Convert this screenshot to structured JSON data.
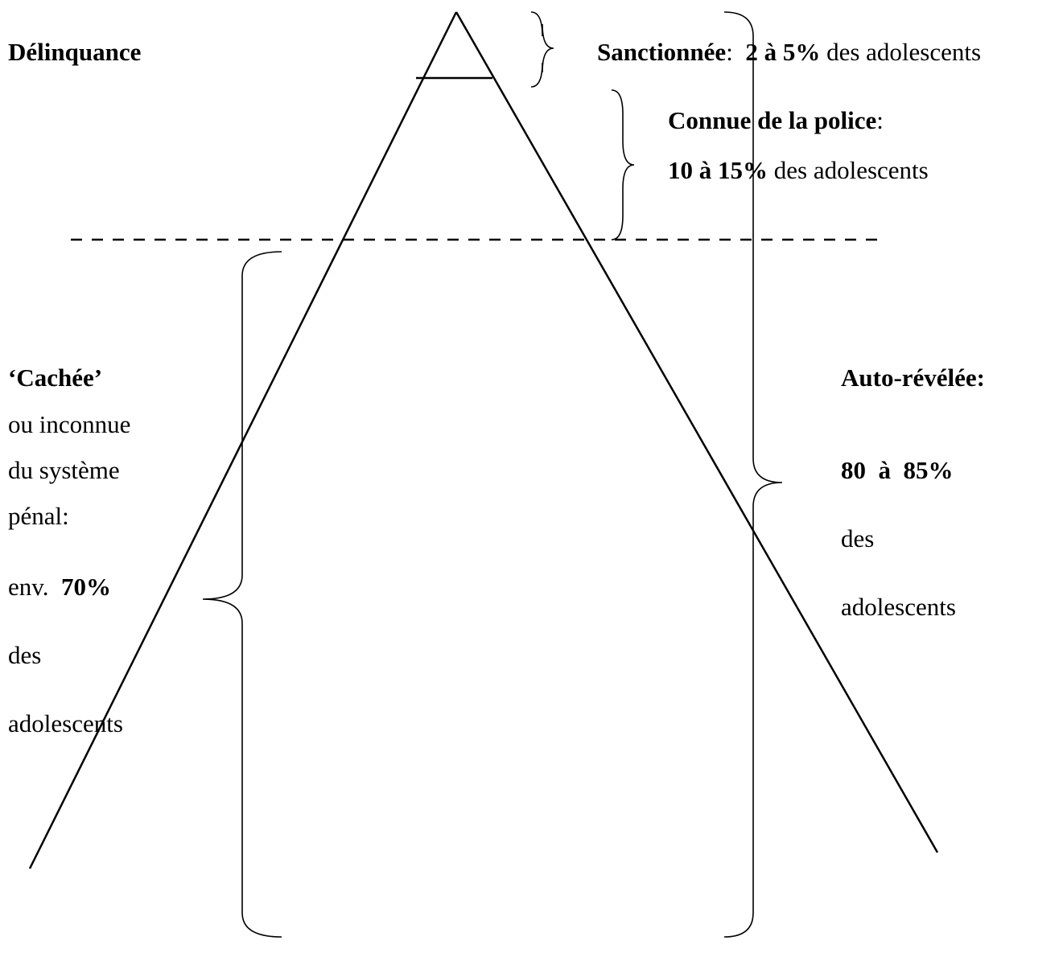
{
  "title": "Délinquance",
  "sanctioned": [
    [
      {
        "text": "Sanctionnée",
        "bold": true
      },
      {
        "text": ":  "
      },
      {
        "text": "2 à 5%",
        "bold": true
      },
      {
        "text": " des adolescents"
      }
    ]
  ],
  "police": [
    [
      {
        "text": "Connue de la police",
        "bold": true
      },
      {
        "text": ":"
      }
    ],
    [
      {
        "text": "10 à 15%",
        "bold": true
      },
      {
        "text": " des adolescents"
      }
    ]
  ],
  "hidden": [
    [
      {
        "text": "‘Cachée’",
        "bold": true
      }
    ],
    [
      {
        "text": "ou inconnue"
      }
    ],
    [
      {
        "text": "du système"
      }
    ],
    [
      {
        "text": "pénal:"
      }
    ],
    [
      {
        "text": "env.  "
      },
      {
        "text": "70%",
        "bold": true
      }
    ],
    [
      {
        "text": "des"
      }
    ],
    [
      {
        "text": "adolescents"
      }
    ]
  ],
  "self_reported": [
    [
      {
        "text": "Auto-révélée:",
        "bold": true
      }
    ],
    [
      {
        "text": "80  à  85%",
        "bold": true
      }
    ],
    [
      {
        "text": "des"
      }
    ],
    [
      {
        "text": "adolescents"
      }
    ]
  ]
}
